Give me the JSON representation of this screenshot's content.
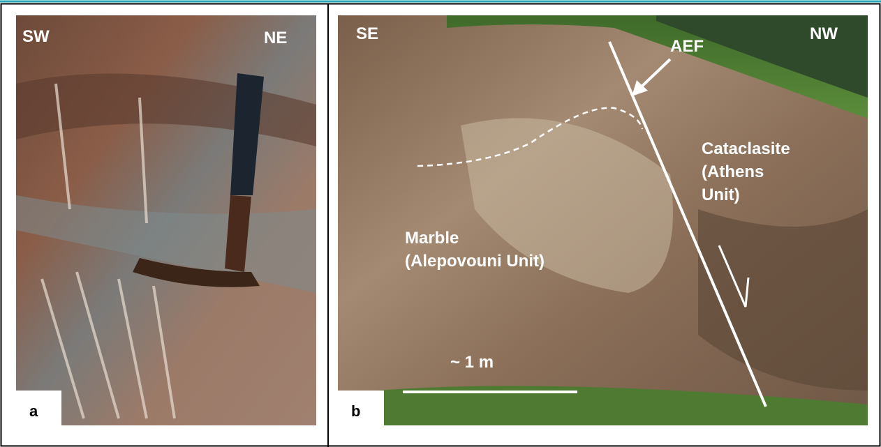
{
  "panels": [
    {
      "label": "a",
      "annotations": {
        "left": "SW",
        "right": "NE"
      }
    },
    {
      "label": "b",
      "annotations": {
        "left": "SE",
        "right": "NW",
        "fault": "AEF",
        "hanging_wall": [
          "Cataclasite",
          "(Athens",
          "Unit)"
        ],
        "footwall": [
          "Marble",
          "(Alepovouni Unit)"
        ],
        "scale": "~ 1 m"
      }
    }
  ]
}
